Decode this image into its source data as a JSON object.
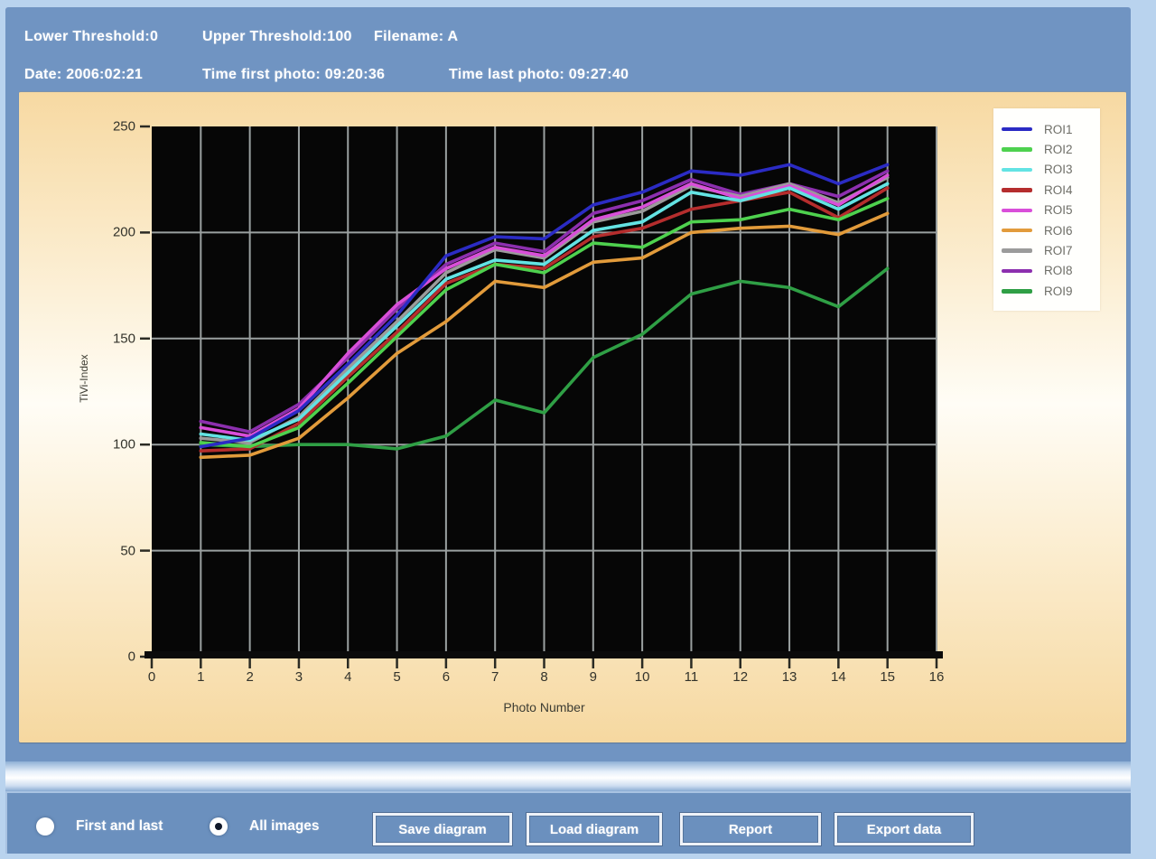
{
  "header": {
    "lower_threshold": "Lower Threshold:0",
    "upper_threshold": "Upper Threshold:100",
    "filename": "Filename: A",
    "date": "Date: 2006:02:21",
    "time_first_photo": "Time first photo: 09:20:36",
    "time_last_photo": "Time last photo: 09:27:40"
  },
  "chart_data": {
    "type": "line",
    "title": "",
    "xlabel": "Photo Number",
    "ylabel": "TiVi-Index",
    "xlim": [
      0,
      16
    ],
    "ylim": [
      0,
      250
    ],
    "x_ticks": [
      0,
      1,
      2,
      3,
      4,
      5,
      6,
      7,
      8,
      9,
      10,
      11,
      12,
      13,
      14,
      15,
      16
    ],
    "y_ticks": [
      0,
      50,
      100,
      150,
      200,
      250
    ],
    "grid": true,
    "grid_color": "#9aa0a0",
    "plot_background": "#060606",
    "legend_position": "top-right",
    "x": [
      1,
      2,
      3,
      4,
      5,
      6,
      7,
      8,
      9,
      10,
      11,
      12,
      13,
      14,
      15
    ],
    "series": [
      {
        "name": "ROI1",
        "color": "#2b2bc4",
        "values": [
          99,
          103,
          116,
          138,
          161,
          189,
          198,
          197,
          213,
          219,
          229,
          227,
          232,
          223,
          232
        ]
      },
      {
        "name": "ROI2",
        "color": "#4ed14e",
        "values": [
          101,
          99,
          108,
          129,
          151,
          173,
          185,
          181,
          195,
          193,
          205,
          206,
          211,
          206,
          216
        ]
      },
      {
        "name": "ROI3",
        "color": "#63e3e3",
        "values": [
          105,
          102,
          112,
          134,
          156,
          178,
          187,
          185,
          201,
          205,
          219,
          215,
          221,
          211,
          223
        ]
      },
      {
        "name": "ROI4",
        "color": "#b52d2d",
        "values": [
          97,
          98,
          110,
          132,
          153,
          176,
          185,
          183,
          198,
          202,
          211,
          215,
          219,
          207,
          221
        ]
      },
      {
        "name": "ROI5",
        "color": "#d94fd9",
        "values": [
          108,
          104,
          117,
          143,
          166,
          183,
          193,
          189,
          206,
          212,
          223,
          216,
          222,
          213,
          227
        ]
      },
      {
        "name": "ROI6",
        "color": "#e29b3b",
        "values": [
          94,
          95,
          103,
          122,
          143,
          158,
          177,
          174,
          186,
          188,
          200,
          202,
          203,
          199,
          209
        ]
      },
      {
        "name": "ROI7",
        "color": "#9b9b9b",
        "values": [
          103,
          101,
          113,
          136,
          158,
          181,
          192,
          188,
          205,
          210,
          222,
          217,
          223,
          214,
          226
        ]
      },
      {
        "name": "ROI8",
        "color": "#8c2fae",
        "values": [
          111,
          106,
          119,
          141,
          164,
          185,
          195,
          191,
          209,
          215,
          225,
          218,
          223,
          217,
          229
        ]
      },
      {
        "name": "ROI9",
        "color": "#2f9f45",
        "values": [
          100,
          99,
          100,
          100,
          98,
          104,
          121,
          115,
          141,
          152,
          171,
          177,
          174,
          165,
          183
        ]
      }
    ]
  },
  "controls": {
    "radios": [
      {
        "label": "First and last",
        "selected": false
      },
      {
        "label": "All images",
        "selected": true
      }
    ],
    "buttons": [
      "Save diagram",
      "Load diagram",
      "Report",
      "Export data"
    ]
  },
  "colors": {
    "window_blue": "#7094c2",
    "frame_light_blue": "#b9d3ee",
    "bottom_bar_blue": "#6b90be",
    "panel_peach": "#f7d9a2",
    "panel_white": "#fffdf6",
    "legend_background": "#fffffd",
    "plot_black": "#060606",
    "grid_gray": "#9aa0a0",
    "text_white": "#ffffff",
    "axis_text": "#33332b"
  }
}
